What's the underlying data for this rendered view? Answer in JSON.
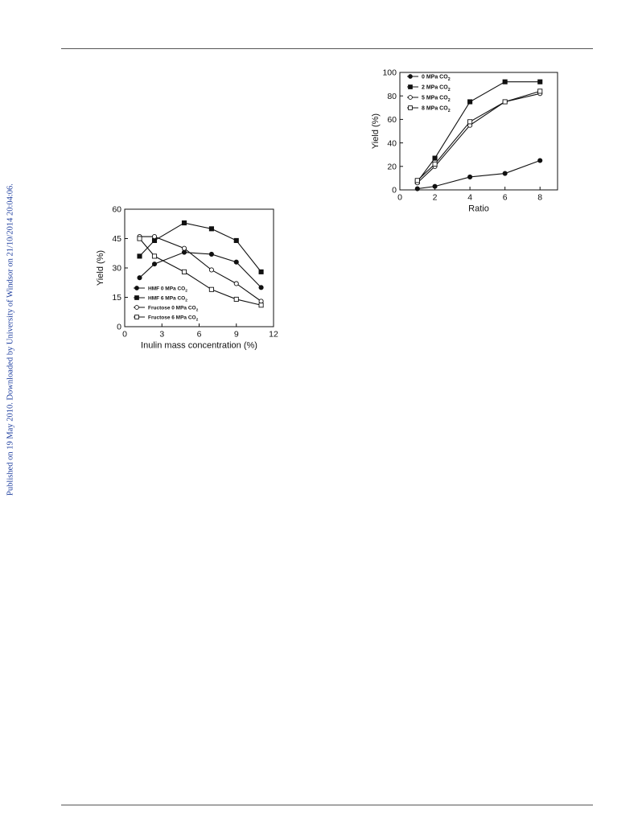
{
  "sidebar_note": "Published on 19 May 2010. Downloaded by University of Windsor on 21/10/2014 20:04:06.",
  "chart_data": [
    {
      "type": "line",
      "xlabel": "Inulin mass concentration (%)",
      "ylabel": "Yield (%)",
      "xlim": [
        0,
        12
      ],
      "ylim": [
        0,
        60
      ],
      "xticks": [
        0,
        3,
        6,
        9,
        12
      ],
      "yticks": [
        0,
        15,
        30,
        45,
        60
      ],
      "legend_position": "bottom-left",
      "series": [
        {
          "name": "HMF 0 MPa CO2",
          "marker": "filled-circle",
          "x": [
            1.2,
            2.4,
            4.8,
            7.0,
            9.0,
            11.0
          ],
          "y": [
            25,
            32,
            38,
            37,
            33,
            20
          ]
        },
        {
          "name": "HMF 6 MPa CO2",
          "marker": "filled-square",
          "x": [
            1.2,
            2.4,
            4.8,
            7.0,
            9.0,
            11.0
          ],
          "y": [
            36,
            44,
            53,
            50,
            44,
            28
          ]
        },
        {
          "name": "Fructose 0 MPa CO2",
          "marker": "open-circle",
          "x": [
            1.2,
            2.4,
            4.8,
            7.0,
            9.0,
            11.0
          ],
          "y": [
            46,
            46,
            40,
            29,
            22,
            13
          ]
        },
        {
          "name": "Fructose 6 MPa CO2",
          "marker": "open-square",
          "x": [
            1.2,
            2.4,
            4.8,
            7.0,
            9.0,
            11.0
          ],
          "y": [
            45,
            36,
            28,
            19,
            14,
            11
          ]
        }
      ]
    },
    {
      "type": "line",
      "xlabel": "Ratio",
      "ylabel": "Yield (%)",
      "xlim": [
        0,
        9
      ],
      "ylim": [
        0,
        100
      ],
      "xticks": [
        0,
        2,
        4,
        6,
        8
      ],
      "yticks": [
        0,
        20,
        40,
        60,
        80,
        100
      ],
      "legend_position": "top-left",
      "series": [
        {
          "name": "0 MPa CO2",
          "marker": "filled-circle",
          "x": [
            1,
            2,
            4,
            6,
            8
          ],
          "y": [
            1,
            3,
            11,
            14,
            25
          ]
        },
        {
          "name": "2 MPa CO2",
          "marker": "filled-square",
          "x": [
            1,
            2,
            4,
            6,
            8
          ],
          "y": [
            7,
            27,
            75,
            92,
            92
          ]
        },
        {
          "name": "5 MPa CO2",
          "marker": "open-circle",
          "x": [
            1,
            2,
            4,
            6,
            8
          ],
          "y": [
            6,
            20,
            55,
            75,
            82
          ]
        },
        {
          "name": "8 MPa CO2",
          "marker": "open-square",
          "x": [
            1,
            2,
            4,
            6,
            8
          ],
          "y": [
            8,
            22,
            58,
            75,
            84
          ]
        }
      ]
    }
  ]
}
